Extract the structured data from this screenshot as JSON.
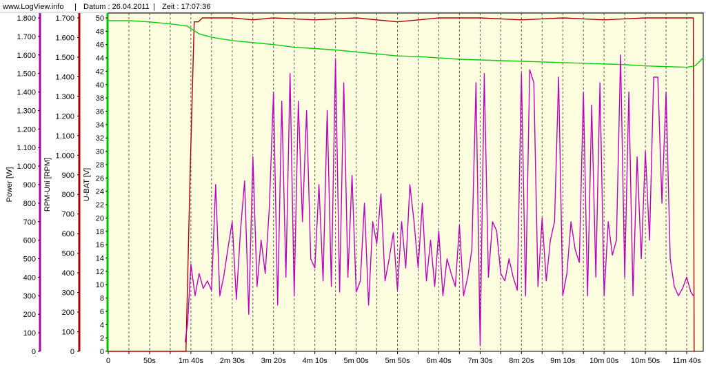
{
  "header": {
    "site": "www.LogView.info",
    "sep": "|",
    "date_label": "Datum : 26.04.2011",
    "time_label": "Zeit : 17:07:36"
  },
  "chart_data": {
    "type": "line",
    "grid": true,
    "legend": "none",
    "plot_background": "#fdfde0",
    "x_axis": {
      "unit": "seconds",
      "range": [
        0,
        720
      ],
      "ticks": [
        0,
        25,
        50,
        75,
        100,
        125,
        150,
        175,
        200,
        225,
        250,
        275,
        300,
        325,
        350,
        375,
        400,
        425,
        450,
        475,
        500,
        525,
        550,
        575,
        600,
        625,
        650,
        675,
        700
      ],
      "tick_labels": [
        "0",
        "",
        "50s",
        "",
        "1m 40s",
        "",
        "2m 30s",
        "",
        "3m 20s",
        "",
        "4m 10s",
        "",
        "5m 00s",
        "",
        "5m 50s",
        "",
        "6m 40s",
        "",
        "7m 30s",
        "",
        "8m 20s",
        "",
        "9m 10s",
        "",
        "10m 00s",
        "",
        "10m 50s",
        "",
        "11m 40s"
      ]
    },
    "axes": [
      {
        "id": "power",
        "label": "Power [W]",
        "color": "#b000b0",
        "range": [
          0,
          1800
        ],
        "ticks": [
          0,
          100,
          200,
          300,
          400,
          500,
          600,
          700,
          800,
          900,
          1000,
          1100,
          1200,
          1300,
          1400,
          1500,
          1600,
          1700,
          1800
        ],
        "tick_labels": [
          "0",
          "100",
          "200",
          "300",
          "400",
          "500",
          "600",
          "700",
          "800",
          "900",
          "1.000",
          "1.100",
          "1.200",
          "1.300",
          "1.400",
          "1.500",
          "1.600",
          "1.700",
          "1.800"
        ]
      },
      {
        "id": "rpm",
        "label": "RPM-Uni [RPM]",
        "color": "#b00000",
        "range": [
          0,
          1700
        ],
        "ticks": [
          0,
          100,
          200,
          300,
          400,
          500,
          600,
          700,
          800,
          900,
          1000,
          1100,
          1200,
          1300,
          1400,
          1500,
          1600,
          1700
        ],
        "tick_labels": [
          "0",
          "100",
          "200",
          "300",
          "400",
          "500",
          "600",
          "700",
          "800",
          "900",
          "1.000",
          "1.100",
          "1.200",
          "1.300",
          "1.400",
          "1.500",
          "1.600",
          "1.700"
        ]
      },
      {
        "id": "ubat",
        "label": "U-BAT [V]",
        "color": "#00c000",
        "range": [
          0,
          50
        ],
        "ticks": [
          0,
          2,
          4,
          6,
          8,
          10,
          12,
          14,
          16,
          18,
          20,
          22,
          24,
          26,
          28,
          30,
          32,
          34,
          36,
          38,
          40,
          42,
          44,
          46,
          48,
          50
        ],
        "tick_labels": [
          "0",
          "2",
          "4",
          "6",
          "8",
          "10",
          "12",
          "14",
          "16",
          "18",
          "20",
          "22",
          "24",
          "26",
          "28",
          "30",
          "32",
          "34",
          "36",
          "38",
          "40",
          "42",
          "44",
          "46",
          "48",
          "50"
        ]
      }
    ],
    "series": [
      {
        "axis": "rpm",
        "color": "#b00000",
        "x": [
          0,
          93,
          94,
          99,
          104,
          109,
          114,
          125,
          150,
          175,
          200,
          250,
          300,
          350,
          400,
          450,
          500,
          550,
          600,
          650,
          700,
          708,
          709,
          710
        ],
        "values": [
          0,
          0,
          0,
          900,
          1680,
          1680,
          1700,
          1700,
          1700,
          1690,
          1700,
          1690,
          1700,
          1680,
          1700,
          1700,
          1690,
          1700,
          1690,
          1700,
          1700,
          1700,
          0,
          0
        ]
      },
      {
        "axis": "ubat",
        "color": "#00d000",
        "x": [
          0,
          25,
          50,
          75,
          95,
          100,
          105,
          110,
          125,
          150,
          175,
          200,
          225,
          250,
          275,
          300,
          325,
          350,
          375,
          400,
          425,
          450,
          475,
          500,
          525,
          550,
          575,
          600,
          625,
          650,
          675,
          700,
          710,
          720
        ],
        "values": [
          49.6,
          49.6,
          49.4,
          49.1,
          48.8,
          48.4,
          48.0,
          47.6,
          47.1,
          46.6,
          46.3,
          46.0,
          45.6,
          45.4,
          45.2,
          44.9,
          44.6,
          44.3,
          44.2,
          44.0,
          43.8,
          43.7,
          43.6,
          43.5,
          43.4,
          43.3,
          43.2,
          43.1,
          43.0,
          42.8,
          42.7,
          42.6,
          42.8,
          44.0
        ]
      },
      {
        "axis": "power",
        "color": "#c000c0",
        "x": [
          93,
          96,
          100,
          105,
          110,
          115,
          120,
          125,
          130,
          135,
          140,
          145,
          150,
          155,
          160,
          165,
          170,
          175,
          180,
          185,
          190,
          195,
          200,
          205,
          210,
          215,
          220,
          225,
          230,
          235,
          240,
          245,
          250,
          255,
          260,
          265,
          270,
          275,
          280,
          285,
          290,
          295,
          300,
          305,
          310,
          315,
          320,
          325,
          330,
          335,
          340,
          345,
          350,
          355,
          360,
          365,
          370,
          375,
          380,
          385,
          390,
          395,
          400,
          405,
          410,
          415,
          420,
          425,
          430,
          435,
          440,
          445,
          450,
          455,
          460,
          465,
          470,
          475,
          480,
          485,
          490,
          495,
          500,
          505,
          510,
          515,
          520,
          525,
          530,
          535,
          540,
          545,
          550,
          555,
          560,
          565,
          570,
          575,
          580,
          585,
          590,
          595,
          600,
          605,
          610,
          615,
          620,
          625,
          630,
          635,
          640,
          645,
          650,
          655,
          660,
          665,
          670,
          675,
          680,
          685,
          690,
          695,
          700,
          705,
          708
        ],
        "values": [
          50,
          150,
          470,
          300,
          420,
          340,
          380,
          330,
          900,
          300,
          410,
          560,
          700,
          280,
          650,
          920,
          200,
          1050,
          350,
          600,
          420,
          780,
          1400,
          250,
          1350,
          400,
          1500,
          300,
          1350,
          700,
          1300,
          500,
          450,
          900,
          380,
          1300,
          350,
          1580,
          320,
          1450,
          400,
          950,
          320,
          380,
          800,
          250,
          700,
          580,
          850,
          380,
          500,
          640,
          330,
          700,
          450,
          900,
          700,
          450,
          800,
          380,
          600,
          350,
          650,
          300,
          500,
          420,
          350,
          680,
          300,
          400,
          550,
          1450,
          30,
          1500,
          400,
          700,
          650,
          420,
          380,
          500,
          400,
          330,
          1500,
          300,
          1520,
          1450,
          350,
          720,
          380,
          600,
          700,
          1480,
          300,
          420,
          700,
          550,
          480,
          1400,
          300,
          1330,
          400,
          1450,
          300,
          700,
          520,
          600,
          1600,
          400,
          1400,
          300,
          1050,
          500,
          1080,
          600,
          1480,
          1480,
          800,
          1400,
          500,
          350,
          300,
          340,
          400,
          320,
          300
        ]
      }
    ]
  }
}
